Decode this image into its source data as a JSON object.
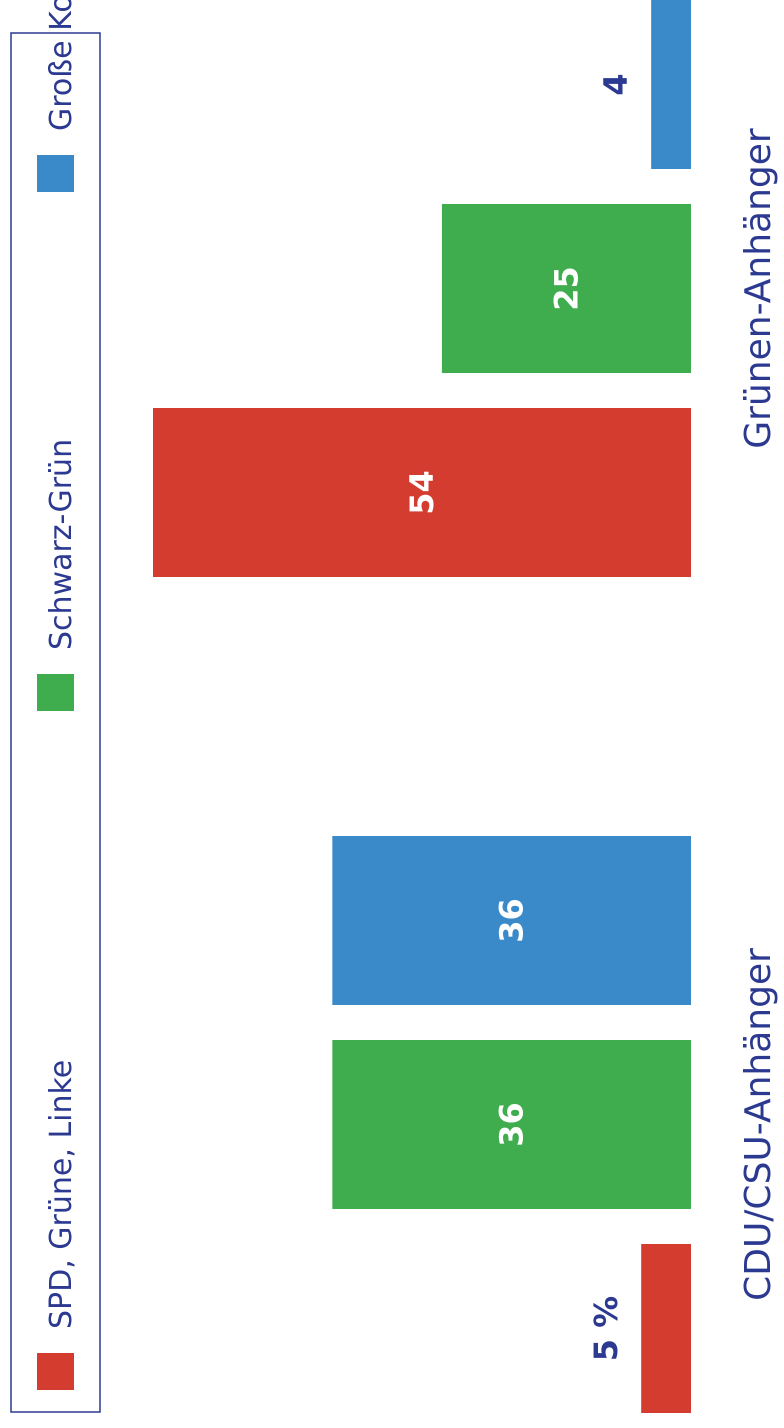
{
  "chart_data": {
    "type": "bar",
    "orientation": "vertical-rotated",
    "categories": [
      "CDU/CSU-Anhänger",
      "Grünen-Anhänger"
    ],
    "series": [
      {
        "name": "SPD, Grüne, Linke",
        "color": "#d43c2f",
        "values": [
          5,
          54
        ]
      },
      {
        "name": "Schwarz-Grün",
        "color": "#3fad4e",
        "values": [
          36,
          25
        ]
      },
      {
        "name": "Große Koalition",
        "color": "#3a8ac9",
        "values": [
          36,
          4
        ]
      }
    ],
    "value_labels": [
      [
        "5 %",
        "54"
      ],
      [
        "36",
        "25"
      ],
      [
        "36",
        "4"
      ]
    ],
    "unit": "%",
    "ylim": [
      0,
      54
    ],
    "legend_position": "left",
    "grid": false
  }
}
